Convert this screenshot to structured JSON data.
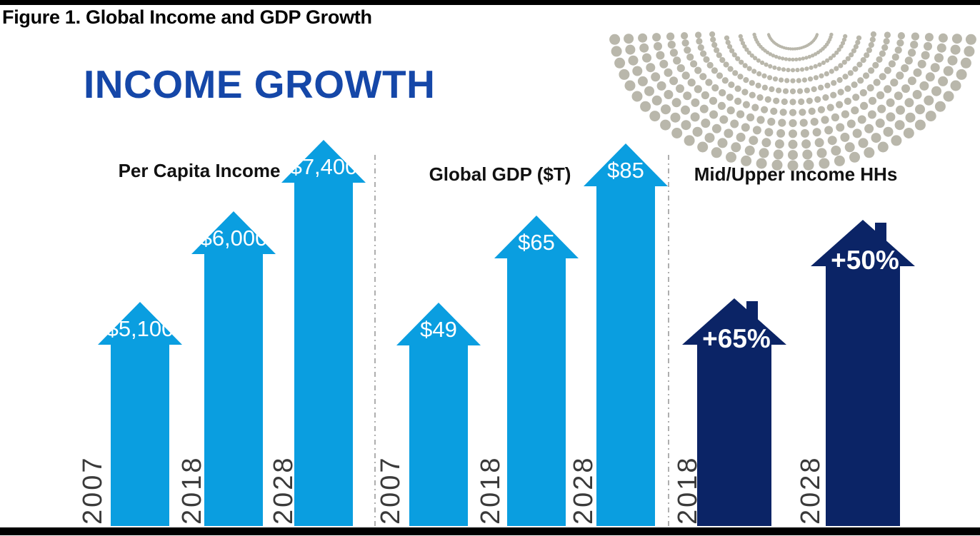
{
  "figure_title": "Figure 1. Global Income and GDP Growth",
  "main_title": "INCOME GROWTH",
  "colors": {
    "arrow_blue": "#0a9ee0",
    "house_navy": "#0b2466",
    "title_blue": "#1547a8",
    "dot_pattern": "#b9b7ab",
    "year_text": "#3a3a3a",
    "divider": "#9a9a9a",
    "bar_black": "#000000",
    "value_text": "#ffffff"
  },
  "chart_data": {
    "type": "bar",
    "title": "INCOME GROWTH",
    "subtitle": "Figure 1. Global Income and GDP Growth",
    "style": "pictorial bar chart (upward block arrows and house pictograms), no axes or gridlines",
    "legend_position": "none",
    "groups": [
      {
        "label": "Per Capita Income",
        "shape": "arrow",
        "categories": [
          "2007",
          "2018",
          "2028"
        ],
        "values": [
          5100,
          6000,
          7400
        ],
        "value_labels": [
          "$5,100",
          "$6,000",
          "$7,400"
        ]
      },
      {
        "label": "Global GDP ($T)",
        "shape": "arrow",
        "categories": [
          "2007",
          "2018",
          "2028"
        ],
        "values": [
          49,
          65,
          85
        ],
        "value_labels": [
          "$49",
          "$65",
          "$85"
        ]
      },
      {
        "label": "Mid/Upper Income HHs",
        "shape": "house",
        "categories": [
          "2018",
          "2028"
        ],
        "values": [
          65,
          50
        ],
        "value_labels": [
          "+65%",
          "+50%"
        ]
      }
    ]
  }
}
